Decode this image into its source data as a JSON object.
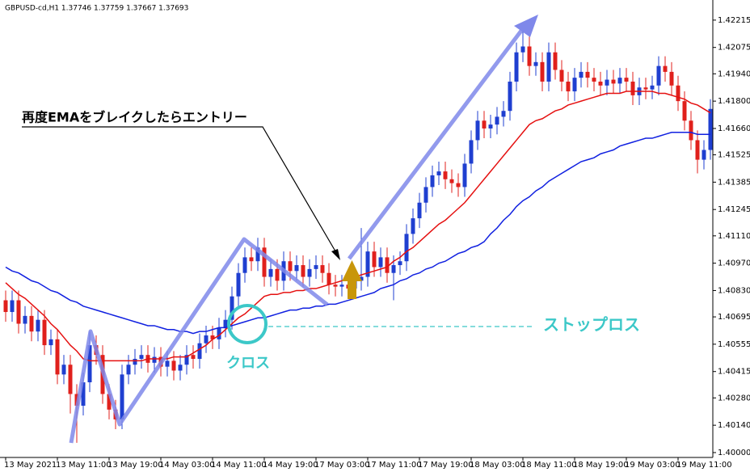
{
  "chart_data": {
    "type": "candlestick",
    "header": "GBPUSD-cd,H1  1.37746 1.37759 1.37667 1.37693",
    "annotations": [
      "再度EMAをブレイクしたらエントリー",
      "クロス",
      "ストップロス"
    ],
    "categories": [
      "13 May 2021",
      null,
      null,
      null,
      null,
      null,
      null,
      null,
      "13 May 11:00",
      null,
      null,
      null,
      null,
      null,
      null,
      null,
      "13 May 19:00",
      null,
      null,
      null,
      null,
      null,
      null,
      null,
      "14 May 03:00",
      null,
      null,
      null,
      null,
      null,
      null,
      null,
      "14 May 11:00",
      null,
      null,
      null,
      null,
      null,
      null,
      null,
      "14 May 19:00",
      null,
      null,
      null,
      null,
      null,
      null,
      null,
      "17 May 03:00",
      null,
      null,
      null,
      null,
      null,
      null,
      null,
      "17 May 11:00",
      null,
      null,
      null,
      null,
      null,
      null,
      null,
      "17 May 19:00",
      null,
      null,
      null,
      null,
      null,
      null,
      null,
      "18 May 03:00",
      null,
      null,
      null,
      null,
      null,
      null,
      null,
      "18 May 11:00",
      null,
      null,
      null,
      null,
      null,
      null,
      null,
      "18 May 19:00",
      null,
      null,
      null,
      null,
      null,
      null,
      null,
      "19 May 03:00",
      null,
      null,
      null,
      null,
      null,
      null,
      null,
      "19 May 11:00",
      null,
      null,
      null,
      null,
      null
    ],
    "open": [
      1.4078,
      1.4072,
      1.4078,
      1.4066,
      1.407,
      1.4062,
      1.4068,
      1.4055,
      1.4058,
      1.404,
      1.4045,
      1.403,
      1.4024,
      1.4036,
      1.4055,
      1.405,
      1.403,
      1.4022,
      1.4017,
      1.404,
      1.4045,
      1.4048,
      1.405,
      1.4046,
      1.4049,
      1.4044,
      1.4047,
      1.4042,
      1.4045,
      1.405,
      1.4048,
      1.4056,
      1.406,
      1.4058,
      1.4064,
      1.4068,
      1.408,
      1.4092,
      1.41,
      1.4098,
      1.4105,
      1.409,
      1.4094,
      1.4088,
      1.4098,
      1.4093,
      1.4096,
      1.409,
      1.4094,
      1.4096,
      1.4092,
      1.4086,
      1.4085,
      1.4086,
      1.4084,
      1.4088,
      1.409,
      1.4103,
      1.4095,
      1.41,
      1.4092,
      1.4096,
      1.4098,
      1.4112,
      1.412,
      1.4128,
      1.4136,
      1.4142,
      1.4144,
      1.414,
      1.4138,
      1.4136,
      1.4148,
      1.416,
      1.417,
      1.4166,
      1.4168,
      1.4172,
      1.4175,
      1.419,
      1.4205,
      1.4208,
      1.4198,
      1.42,
      1.419,
      1.4205,
      1.4196,
      1.419,
      1.4185,
      1.4192,
      1.4195,
      1.4192,
      1.419,
      1.4188,
      1.4191,
      1.4189,
      1.4192,
      1.419,
      1.4183,
      1.4187,
      1.4186,
      1.4188,
      1.4198,
      1.4195,
      1.4188,
      1.418,
      1.417,
      1.416,
      1.415,
      1.4155
    ],
    "high": [
      1.4083,
      1.4083,
      1.4083,
      1.4075,
      1.4075,
      1.4073,
      1.4073,
      1.4063,
      1.4063,
      1.405,
      1.405,
      1.4035,
      1.4041,
      1.4062,
      1.406,
      1.4055,
      1.4035,
      1.4027,
      1.4045,
      1.405,
      1.4053,
      1.4055,
      1.4055,
      1.4054,
      1.4054,
      1.4052,
      1.4052,
      1.405,
      1.4055,
      1.4055,
      1.4061,
      1.4065,
      1.4065,
      1.4069,
      1.4073,
      1.4085,
      1.4097,
      1.4105,
      1.4105,
      1.411,
      1.411,
      1.4099,
      1.4099,
      1.4103,
      1.4103,
      1.4101,
      1.4101,
      1.4099,
      1.4101,
      1.4101,
      1.4097,
      1.4091,
      1.4091,
      1.4091,
      1.4093,
      1.4115,
      1.4108,
      1.4108,
      1.4105,
      1.4105,
      1.4101,
      1.4103,
      1.4117,
      1.4125,
      1.4133,
      1.4141,
      1.4147,
      1.4149,
      1.4149,
      1.4145,
      1.4143,
      1.4153,
      1.4165,
      1.4175,
      1.4175,
      1.4173,
      1.4177,
      1.418,
      1.4195,
      1.421,
      1.4218,
      1.4213,
      1.4205,
      1.4205,
      1.421,
      1.421,
      1.4201,
      1.4195,
      1.4197,
      1.42,
      1.42,
      1.4197,
      1.4195,
      1.4196,
      1.4196,
      1.4197,
      1.4197,
      1.4195,
      1.4192,
      1.4192,
      1.4193,
      1.4203,
      1.4203,
      1.42,
      1.4193,
      1.4185,
      1.4175,
      1.4165,
      1.416,
      1.4181
    ],
    "low": [
      1.4067,
      1.4067,
      1.4061,
      1.4061,
      1.4057,
      1.4057,
      1.405,
      1.405,
      1.4035,
      1.4035,
      1.402,
      1.4005,
      1.4019,
      1.4031,
      1.4045,
      1.4025,
      1.4017,
      1.4012,
      1.4012,
      1.4035,
      1.404,
      1.4043,
      1.4041,
      1.4041,
      1.4039,
      1.4039,
      1.4037,
      1.4037,
      1.404,
      1.4043,
      1.4043,
      1.4051,
      1.4053,
      1.4053,
      1.4059,
      1.4063,
      1.4075,
      1.4087,
      1.4093,
      1.4093,
      1.4085,
      1.4085,
      1.4083,
      1.4083,
      1.4088,
      1.4088,
      1.4085,
      1.4085,
      1.4089,
      1.4087,
      1.4081,
      1.408,
      1.408,
      1.4079,
      1.4079,
      1.4083,
      1.4085,
      1.409,
      1.409,
      1.4087,
      1.4078,
      1.4091,
      1.4093,
      1.4107,
      1.4115,
      1.4123,
      1.4131,
      1.4137,
      1.4135,
      1.4133,
      1.4131,
      1.4131,
      1.4143,
      1.4155,
      1.4161,
      1.4161,
      1.4163,
      1.4167,
      1.417,
      1.4185,
      1.42,
      1.4193,
      1.4193,
      1.4185,
      1.4185,
      1.4191,
      1.4185,
      1.418,
      1.418,
      1.4187,
      1.4187,
      1.4185,
      1.4183,
      1.4183,
      1.4184,
      1.4184,
      1.4185,
      1.4178,
      1.4178,
      1.4181,
      1.4181,
      1.4183,
      1.419,
      1.4183,
      1.4175,
      1.4165,
      1.4155,
      1.4143,
      1.4145,
      1.415
    ],
    "close": [
      1.4072,
      1.4078,
      1.4066,
      1.407,
      1.4062,
      1.4068,
      1.4055,
      1.4058,
      1.404,
      1.4045,
      1.403,
      1.4024,
      1.4036,
      1.4055,
      1.405,
      1.403,
      1.4022,
      1.4017,
      1.404,
      1.4045,
      1.4048,
      1.405,
      1.4046,
      1.4049,
      1.4044,
      1.4047,
      1.4042,
      1.4045,
      1.405,
      1.4048,
      1.4056,
      1.406,
      1.4058,
      1.4064,
      1.4068,
      1.408,
      1.4092,
      1.41,
      1.4098,
      1.4105,
      1.409,
      1.4094,
      1.4088,
      1.4098,
      1.4093,
      1.4096,
      1.409,
      1.4094,
      1.4096,
      1.4092,
      1.4086,
      1.4085,
      1.4086,
      1.4084,
      1.4088,
      1.409,
      1.4103,
      1.4095,
      1.41,
      1.4092,
      1.4096,
      1.4098,
      1.4112,
      1.412,
      1.4128,
      1.4136,
      1.4142,
      1.4144,
      1.414,
      1.4138,
      1.4136,
      1.4148,
      1.416,
      1.417,
      1.4166,
      1.4168,
      1.4172,
      1.4175,
      1.419,
      1.4205,
      1.4208,
      1.4198,
      1.42,
      1.419,
      1.4205,
      1.4196,
      1.419,
      1.4185,
      1.4192,
      1.4195,
      1.4192,
      1.419,
      1.4188,
      1.4191,
      1.4189,
      1.4192,
      1.419,
      1.4183,
      1.4187,
      1.4186,
      1.4188,
      1.4198,
      1.4195,
      1.4188,
      1.418,
      1.417,
      1.416,
      1.415,
      1.4155,
      1.4176
    ],
    "up_color": "#1f3fd0",
    "down_color": "#e0201c",
    "lines": [
      {
        "color": "#e51010",
        "values": [
          1.4087,
          1.4084,
          1.4081,
          1.4079,
          1.4076,
          1.4073,
          1.407,
          1.4066,
          1.4063,
          1.4059,
          1.4055,
          1.4052,
          1.4048,
          1.4047,
          1.4047,
          1.4047,
          1.4047,
          1.4047,
          1.4047,
          1.4047,
          1.4047,
          1.4047,
          1.4048,
          1.4048,
          1.4048,
          1.4048,
          1.4049,
          1.4049,
          1.4049,
          1.4051,
          1.4053,
          1.4055,
          1.4058,
          1.406,
          1.4063,
          1.4066,
          1.4069,
          1.4071,
          1.4074,
          1.4077,
          1.408,
          1.4081,
          1.4081,
          1.4082,
          1.4082,
          1.4083,
          1.4083,
          1.4084,
          1.4084,
          1.4085,
          1.4086,
          1.4087,
          1.4088,
          1.4089,
          1.409,
          1.4091,
          1.4092,
          1.4093,
          1.4094,
          1.4095,
          1.4098,
          1.41,
          1.4103,
          1.4105,
          1.4108,
          1.4111,
          1.4114,
          1.4117,
          1.4119,
          1.4122,
          1.4125,
          1.4128,
          1.4132,
          1.4136,
          1.414,
          1.4144,
          1.4148,
          1.4152,
          1.4156,
          1.416,
          1.4164,
          1.4168,
          1.417,
          1.4171,
          1.4173,
          1.4175,
          1.4176,
          1.4178,
          1.4179,
          1.418,
          1.4181,
          1.4182,
          1.4183,
          1.4184,
          1.4184,
          1.4184,
          1.4185,
          1.4185,
          1.4185,
          1.4185,
          1.4185,
          1.4184,
          1.4184,
          1.4183,
          1.4182,
          1.4181,
          1.4179,
          1.4178,
          1.4176,
          1.4174
        ]
      },
      {
        "color": "#1020e0",
        "values": [
          1.4095,
          1.4093,
          1.4092,
          1.409,
          1.4088,
          1.4087,
          1.4085,
          1.4083,
          1.4082,
          1.408,
          1.4078,
          1.4077,
          1.4075,
          1.4074,
          1.4073,
          1.4072,
          1.4071,
          1.407,
          1.4069,
          1.4068,
          1.4067,
          1.4066,
          1.4065,
          1.4065,
          1.4064,
          1.4063,
          1.4063,
          1.4062,
          1.4062,
          1.4061,
          1.4062,
          1.4062,
          1.4063,
          1.4064,
          1.4064,
          1.4065,
          1.4066,
          1.4067,
          1.4068,
          1.4069,
          1.4069,
          1.407,
          1.4071,
          1.4072,
          1.4073,
          1.4073,
          1.4074,
          1.4074,
          1.4075,
          1.4075,
          1.4076,
          1.4076,
          1.4077,
          1.4078,
          1.4079,
          1.408,
          1.4081,
          1.4082,
          1.4084,
          1.4085,
          1.4086,
          1.4088,
          1.4089,
          1.4091,
          1.4092,
          1.4094,
          1.4095,
          1.4097,
          1.4098,
          1.41,
          1.4102,
          1.4103,
          1.4105,
          1.4106,
          1.4108,
          1.4112,
          1.4115,
          1.4119,
          1.4122,
          1.4126,
          1.4129,
          1.4131,
          1.4134,
          1.4136,
          1.4139,
          1.4141,
          1.4143,
          1.4145,
          1.4147,
          1.4149,
          1.415,
          1.4151,
          1.4153,
          1.4154,
          1.4155,
          1.4157,
          1.4158,
          1.4159,
          1.416,
          1.4161,
          1.4161,
          1.4162,
          1.4163,
          1.4164,
          1.4164,
          1.4164,
          1.4164,
          1.4163,
          1.4163,
          1.4163
        ]
      }
    ],
    "ylim": [
      1.39975,
      1.42318
    ],
    "yticks": [
      {
        "value": 1.42215,
        "label": "1.42215"
      },
      {
        "value": 1.42075,
        "label": "1.42075"
      },
      {
        "value": 1.4194,
        "label": "1.41940"
      },
      {
        "value": 1.418,
        "label": "1.41800"
      },
      {
        "value": 1.4166,
        "label": "1.41660"
      },
      {
        "value": 1.41525,
        "label": "1.41525"
      },
      {
        "value": 1.41385,
        "label": "1.41385"
      },
      {
        "value": 1.41245,
        "label": "1.41245"
      },
      {
        "value": 1.4111,
        "label": "1.41110"
      },
      {
        "value": 1.4097,
        "label": "1.40970"
      },
      {
        "value": 1.4083,
        "label": "1.40830"
      },
      {
        "value": 1.40695,
        "label": "1.40695"
      },
      {
        "value": 1.40555,
        "label": "1.40555"
      },
      {
        "value": 1.40415,
        "label": "1.40415"
      },
      {
        "value": 1.4028,
        "label": "1.40280"
      },
      {
        "value": 1.4014,
        "label": "1.40140"
      },
      {
        "value": 1.4,
        "label": "1.40000"
      }
    ]
  }
}
